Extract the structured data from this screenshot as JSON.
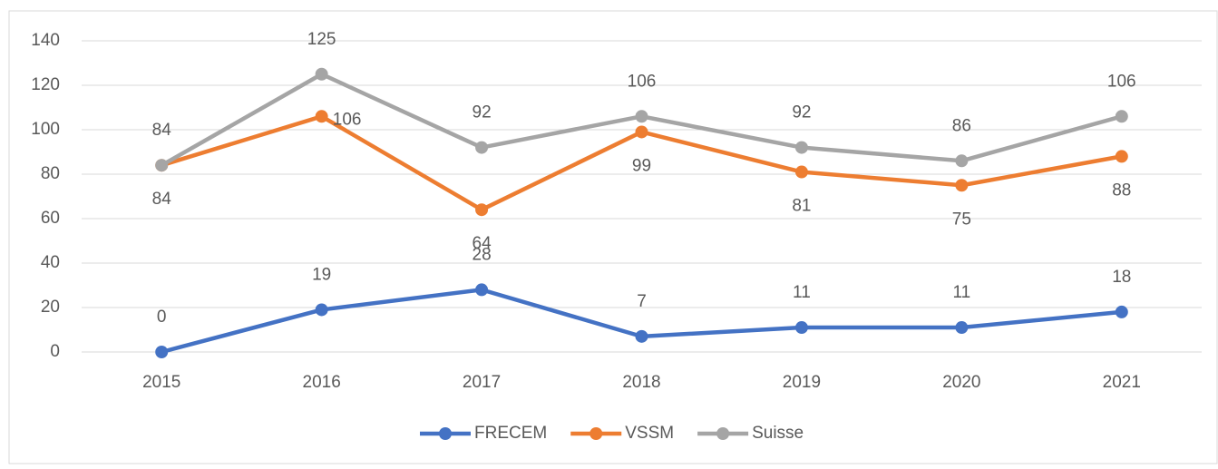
{
  "chart_data": {
    "type": "line",
    "categories": [
      "2015",
      "2016",
      "2017",
      "2018",
      "2019",
      "2020",
      "2021"
    ],
    "series": [
      {
        "name": "FRECEM",
        "color": "#4472c4",
        "values": [
          0,
          19,
          28,
          7,
          11,
          11,
          18
        ]
      },
      {
        "name": "VSSM",
        "color": "#ed7d31",
        "values": [
          84,
          106,
          64,
          99,
          81,
          75,
          88
        ]
      },
      {
        "name": "Suisse",
        "color": "#a5a5a5",
        "values": [
          84,
          125,
          92,
          106,
          92,
          86,
          106
        ]
      }
    ],
    "ylim": [
      0,
      140
    ],
    "yticks": [
      0,
      20,
      40,
      60,
      80,
      100,
      120,
      140
    ],
    "grid": true,
    "legend": "bottom"
  }
}
